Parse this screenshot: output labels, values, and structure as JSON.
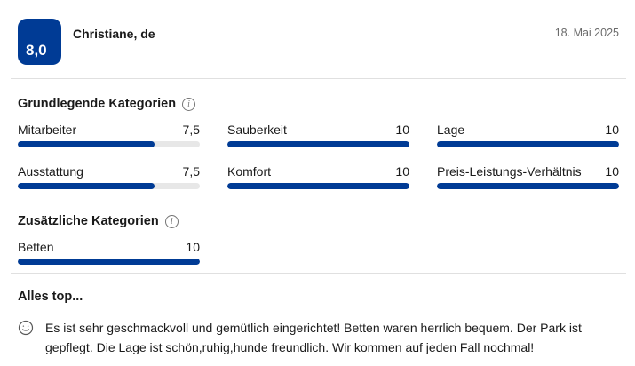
{
  "header": {
    "score": "8,0",
    "reviewer": "Christiane, de",
    "date": "18. Mai 2025"
  },
  "colors": {
    "brand_blue": "#003b95",
    "bar_track": "#e7e7e7",
    "divider": "#e0e0e0",
    "text_dark": "#1a1a1a",
    "text_muted": "#6b6b6b",
    "icon_gray": "#757575"
  },
  "icons": {
    "info": "info-icon",
    "info_glyph": "i",
    "sentiment": "smiley-happy-icon"
  },
  "sections": [
    {
      "title": "Grundlegende Kategorien",
      "categories": [
        {
          "label": "Mitarbeiter",
          "value": "7,5",
          "percent": 75
        },
        {
          "label": "Sauberkeit",
          "value": "10",
          "percent": 100
        },
        {
          "label": "Lage",
          "value": "10",
          "percent": 100
        },
        {
          "label": "Ausstattung",
          "value": "7,5",
          "percent": 75
        },
        {
          "label": "Komfort",
          "value": "10",
          "percent": 100
        },
        {
          "label": "Preis-Leistungs-Verhältnis",
          "value": "10",
          "percent": 100
        }
      ]
    },
    {
      "title": "Zusätzliche Kategorien",
      "categories": [
        {
          "label": "Betten",
          "value": "10",
          "percent": 100
        }
      ]
    }
  ],
  "review": {
    "title": "Alles top...",
    "text": "Es ist sehr geschmackvoll und gemütlich eingerichtet! Betten waren herrlich bequem. Der Park ist gepflegt. Die Lage ist schön,ruhig,hunde freundlich. Wir kommen auf jeden Fall nochmal!"
  }
}
